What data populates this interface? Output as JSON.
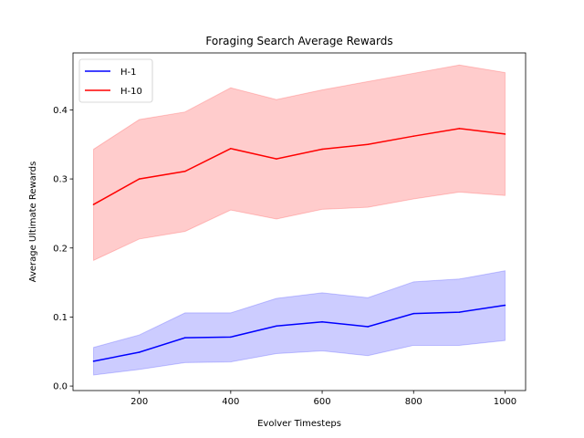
{
  "chart_data": {
    "type": "line",
    "title": "Foraging Search Average Rewards",
    "xlabel": "Evolver Timesteps",
    "ylabel": "Average Ultimate Rewards",
    "xlim": [
      55,
      1045
    ],
    "ylim": [
      -0.0065,
      0.4825
    ],
    "xticks": [
      200,
      400,
      600,
      800,
      1000
    ],
    "yticks": [
      0.0,
      0.1,
      0.2,
      0.3,
      0.4
    ],
    "ytick_labels": [
      "0.0",
      "0.1",
      "0.2",
      "0.3",
      "0.4"
    ],
    "grid": false,
    "legend": "top-left",
    "x": [
      100,
      200,
      300,
      400,
      500,
      600,
      700,
      800,
      900,
      1000
    ],
    "series": [
      {
        "name": "H-1",
        "color": "#0000ff",
        "values": [
          0.036,
          0.049,
          0.07,
          0.071,
          0.087,
          0.093,
          0.086,
          0.105,
          0.107,
          0.117
        ],
        "lower": [
          0.016,
          0.024,
          0.034,
          0.035,
          0.047,
          0.051,
          0.044,
          0.059,
          0.059,
          0.066
        ],
        "upper": [
          0.056,
          0.074,
          0.106,
          0.106,
          0.127,
          0.135,
          0.128,
          0.151,
          0.155,
          0.167
        ]
      },
      {
        "name": "H-10",
        "color": "#ff0000",
        "values": [
          0.263,
          0.3,
          0.311,
          0.344,
          0.329,
          0.343,
          0.35,
          0.362,
          0.373,
          0.365
        ],
        "lower": [
          0.182,
          0.213,
          0.224,
          0.255,
          0.242,
          0.256,
          0.259,
          0.271,
          0.281,
          0.276
        ],
        "upper": [
          0.343,
          0.386,
          0.397,
          0.432,
          0.415,
          0.429,
          0.441,
          0.453,
          0.465,
          0.454
        ]
      }
    ]
  }
}
